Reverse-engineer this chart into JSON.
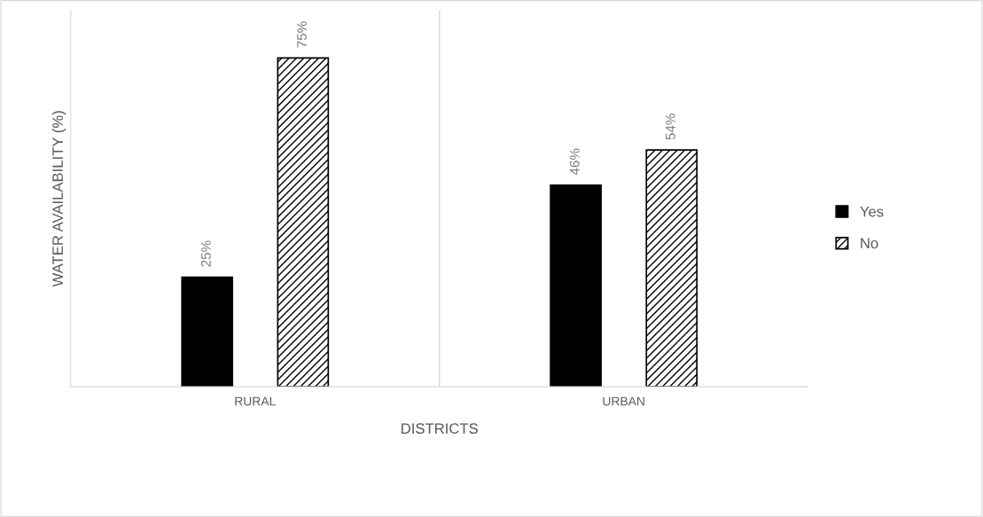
{
  "chart_data": {
    "type": "bar",
    "xlabel": "DISTRICTS",
    "ylabel": "WATER AVAILABILITY (%)",
    "categories": [
      "RURAL",
      "URBAN"
    ],
    "series": [
      {
        "name": "Yes",
        "color": "#000000",
        "values": [
          25,
          46
        ],
        "value_labels": [
          "25%",
          "46%"
        ]
      },
      {
        "name": "No",
        "color": "#000000",
        "values": [
          75,
          54
        ],
        "value_labels": [
          "75%",
          "54%"
        ]
      }
    ],
    "tick_labels": "x",
    "grid": "x",
    "legend": "right"
  }
}
